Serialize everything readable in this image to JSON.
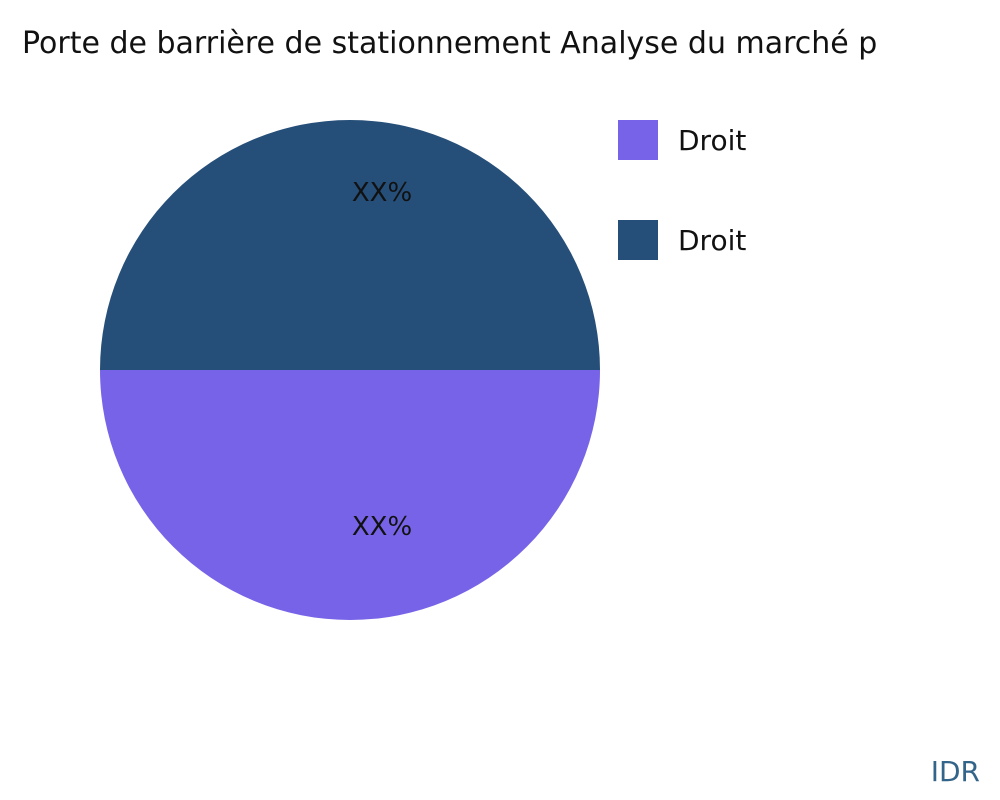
{
  "title": "Porte de barrière de stationnement Analyse du marché p",
  "watermark": "IDR",
  "colors": {
    "purple_slice": "#7663e8",
    "navy_slice": "#254e78",
    "watermark_text": "#33658a"
  },
  "chart_data": {
    "type": "pie",
    "title": "Porte de barrière de stationnement Analyse du marché p",
    "legend_position": "right",
    "slices": [
      {
        "label": "Droit",
        "value": 50,
        "display": "XX%",
        "color": "#7663e8",
        "position": "bottom-half"
      },
      {
        "label": "Droit",
        "value": 50,
        "display": "XX%",
        "color": "#254e78",
        "position": "top-half"
      }
    ]
  }
}
